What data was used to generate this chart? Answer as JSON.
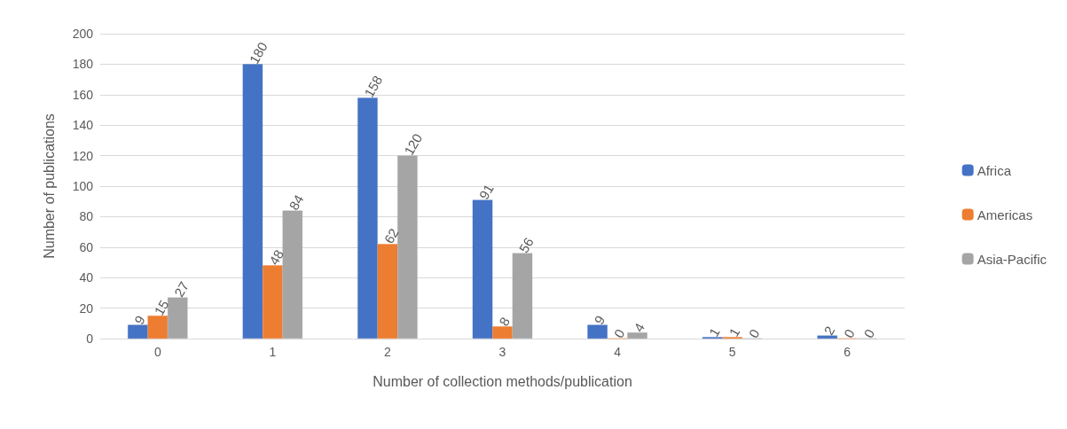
{
  "chart_data": {
    "type": "bar",
    "xlabel": "Number of collection methods/publication",
    "ylabel": "Number of publications",
    "categories": [
      "0",
      "1",
      "2",
      "3",
      "4",
      "5",
      "6"
    ],
    "series": [
      {
        "name": "Africa",
        "color": "#4472c4",
        "values": [
          9,
          180,
          158,
          91,
          9,
          1,
          2
        ]
      },
      {
        "name": "Americas",
        "color": "#ed7d31",
        "values": [
          15,
          48,
          62,
          8,
          0,
          1,
          0
        ]
      },
      {
        "name": "Asia-Pacific",
        "color": "#a5a5a5",
        "values": [
          27,
          84,
          120,
          56,
          4,
          0,
          0
        ]
      }
    ],
    "ylim": [
      0,
      200
    ],
    "yticks": [
      0,
      20,
      40,
      60,
      80,
      100,
      120,
      140,
      160,
      180,
      200
    ],
    "grid": "y",
    "legend": "right",
    "data_labels": true
  }
}
